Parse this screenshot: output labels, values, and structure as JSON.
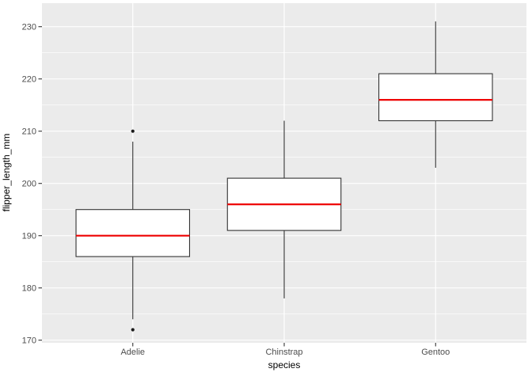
{
  "window": {
    "background_color": "#FFFFFF"
  },
  "chart_data": {
    "type": "boxplot",
    "title": "",
    "xlabel": "species",
    "ylabel": "flipper_length_mm",
    "categories": [
      "Adelie",
      "Chinstrap",
      "Gentoo"
    ],
    "series": [
      {
        "name": "Adelie",
        "whisker_low": 174,
        "q1": 186,
        "median": 190,
        "q3": 195,
        "whisker_high": 208,
        "outliers": [
          210,
          172
        ]
      },
      {
        "name": "Chinstrap",
        "whisker_low": 178,
        "q1": 191,
        "median": 196,
        "q3": 201,
        "whisker_high": 212,
        "outliers": []
      },
      {
        "name": "Gentoo",
        "whisker_low": 203,
        "q1": 212,
        "median": 216,
        "q3": 221,
        "whisker_high": 231,
        "outliers": []
      }
    ],
    "y_ticks": [
      170,
      180,
      190,
      200,
      210,
      220,
      230
    ],
    "y_minor_ticks": [
      175,
      185,
      195,
      205,
      215,
      225
    ],
    "ylim": [
      169.5,
      234.5
    ],
    "grid": true,
    "legend": "none",
    "style": {
      "panel_bg": "#EBEBEB",
      "grid_color": "#FFFFFF",
      "box_fill": "#FFFFFF",
      "box_stroke": "#333333",
      "median_color": "#EE0000",
      "outlier_color": "#1A1A1A",
      "tick_text_color": "#4D4D4D",
      "axis_title_color": "#000000"
    }
  }
}
